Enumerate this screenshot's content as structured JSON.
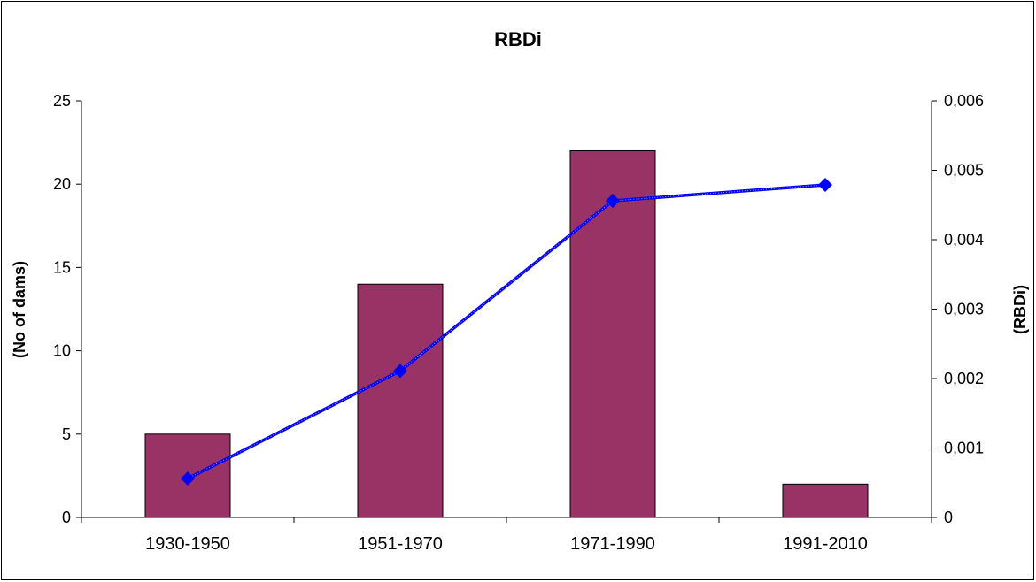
{
  "chart_data": {
    "type": "bar+line",
    "title": "RBDi",
    "categories": [
      "1930-1950",
      "1951-1970",
      "1971-1990",
      "1991-2010"
    ],
    "y_left": {
      "label": "(No of dams)",
      "range": [
        0,
        25
      ],
      "ticks": [
        "0",
        "5",
        "10",
        "15",
        "20",
        "25"
      ]
    },
    "y_right": {
      "label": "(RBDi)",
      "range": [
        0,
        0.006
      ],
      "ticks": [
        "0",
        "0,001",
        "0,002",
        "0,003",
        "0,004",
        "0,005",
        "0,006"
      ]
    },
    "series": [
      {
        "type": "bar",
        "axis": "left",
        "values": [
          5,
          14,
          22,
          2
        ],
        "color": "#993366"
      },
      {
        "type": "line",
        "axis": "right",
        "values": [
          0.00056,
          0.00211,
          0.00456,
          0.00479
        ],
        "color": "#0000ff",
        "marker": "diamond"
      }
    ],
    "grid": false,
    "legend": "none"
  }
}
